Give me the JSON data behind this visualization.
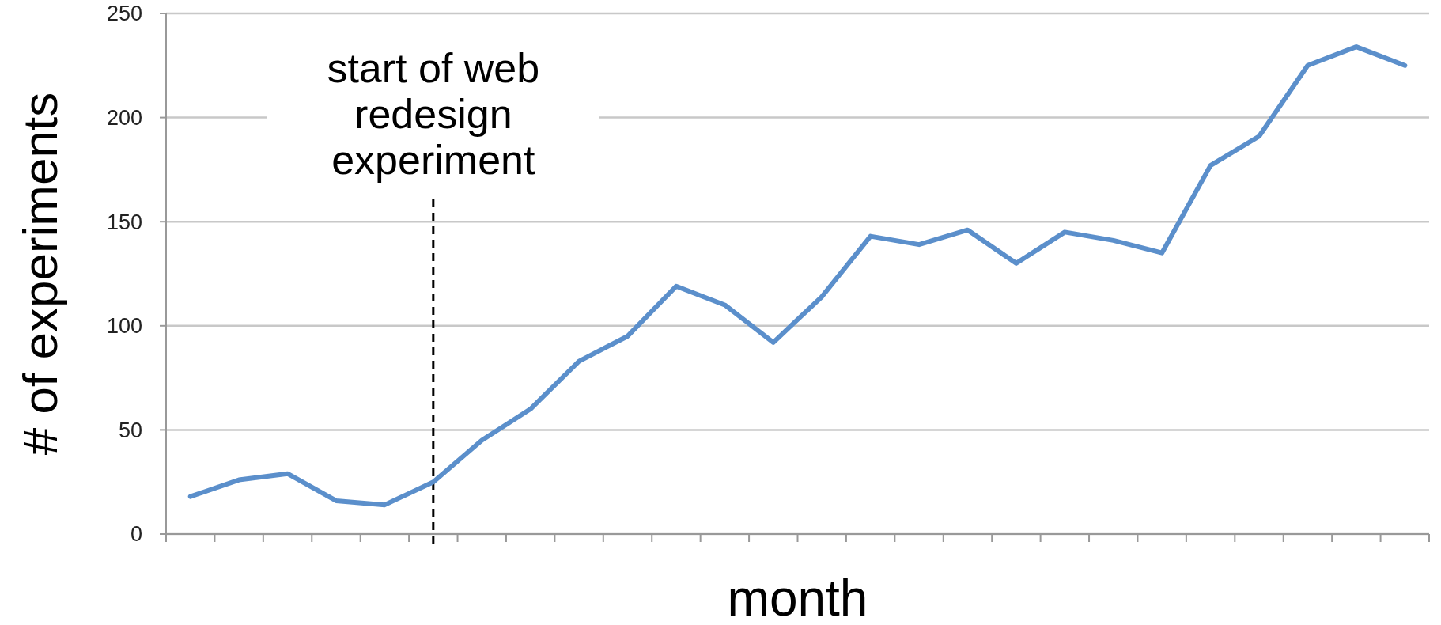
{
  "chart_data": {
    "type": "line",
    "xlabel": "month",
    "ylabel": "# of experiments",
    "categories": [
      null,
      null,
      null,
      null,
      null,
      null,
      null,
      null,
      null,
      null,
      null,
      null,
      null,
      null,
      null,
      null,
      null,
      null,
      null,
      null,
      null,
      null,
      null,
      null,
      null,
      null
    ],
    "ylim": [
      0,
      250
    ],
    "yticks": [
      0,
      50,
      100,
      150,
      200,
      250
    ],
    "series": [
      {
        "color": "#5b8fcb",
        "values": [
          18,
          26,
          29,
          16,
          14,
          25,
          45,
          60,
          83,
          95,
          119,
          110,
          92,
          114,
          143,
          139,
          146,
          130,
          145,
          141,
          135,
          177,
          191,
          225,
          234,
          225
        ]
      }
    ],
    "annotations": [
      "start of web redesign experiment"
    ],
    "grid": "y",
    "marker": "none",
    "line_style": "solid"
  }
}
